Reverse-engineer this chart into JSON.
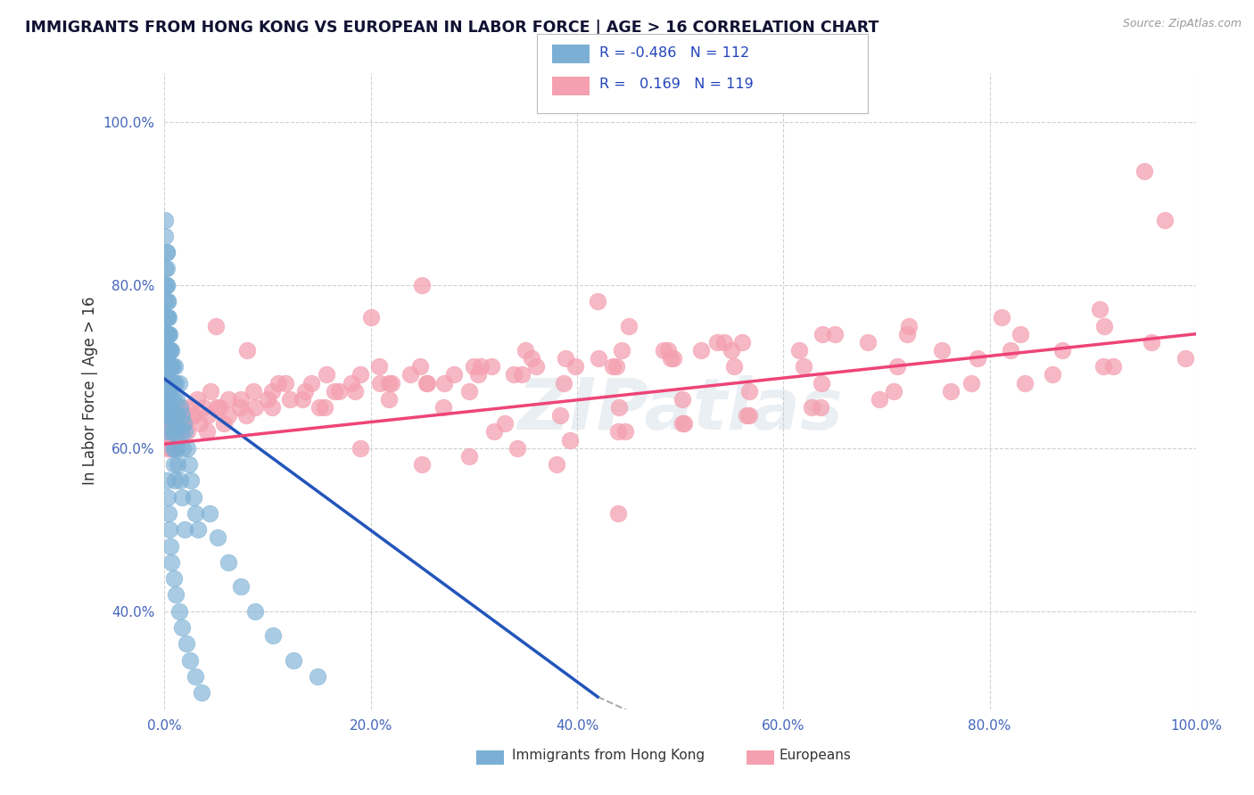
{
  "title": "IMMIGRANTS FROM HONG KONG VS EUROPEAN IN LABOR FORCE | AGE > 16 CORRELATION CHART",
  "source": "Source: ZipAtlas.com",
  "ylabel": "In Labor Force | Age > 16",
  "xlim": [
    0.0,
    1.0
  ],
  "ylim": [
    0.28,
    1.06
  ],
  "xticks": [
    0.0,
    0.2,
    0.4,
    0.6,
    0.8,
    1.0
  ],
  "xtick_labels": [
    "0.0%",
    "20.0%",
    "40.0%",
    "60.0%",
    "80.0%",
    "100.0%"
  ],
  "yticks": [
    0.4,
    0.6,
    0.8,
    1.0
  ],
  "ytick_labels": [
    "40.0%",
    "60.0%",
    "80.0%",
    "100.0%"
  ],
  "hk_R": -0.486,
  "hk_N": 112,
  "eu_R": 0.169,
  "eu_N": 119,
  "hk_color": "#7BAFD4",
  "eu_color": "#F4A0B0",
  "trend_hk_color": "#2255BB",
  "trend_eu_color": "#EE4477",
  "watermark_text": "ZIPatlas",
  "legend_label_hk": "Immigrants from Hong Kong",
  "legend_label_eu": "Europeans",
  "hk_trend_x0": 0.0,
  "hk_trend_y0": 0.685,
  "hk_trend_x1": 0.42,
  "hk_trend_y1": 0.295,
  "eu_trend_x0": 0.0,
  "eu_trend_y0": 0.605,
  "eu_trend_x1": 1.0,
  "eu_trend_y1": 0.74,
  "hk_x": [
    0.001,
    0.001,
    0.001,
    0.001,
    0.002,
    0.002,
    0.002,
    0.002,
    0.002,
    0.002,
    0.002,
    0.003,
    0.003,
    0.003,
    0.003,
    0.003,
    0.004,
    0.004,
    0.004,
    0.004,
    0.005,
    0.005,
    0.005,
    0.006,
    0.006,
    0.006,
    0.007,
    0.007,
    0.008,
    0.008,
    0.009,
    0.009,
    0.01,
    0.01,
    0.011,
    0.012,
    0.013,
    0.014,
    0.015,
    0.016,
    0.017,
    0.018,
    0.019,
    0.02,
    0.022,
    0.024,
    0.026,
    0.028,
    0.03,
    0.033,
    0.001,
    0.001,
    0.001,
    0.002,
    0.002,
    0.002,
    0.003,
    0.003,
    0.004,
    0.004,
    0.005,
    0.006,
    0.007,
    0.008,
    0.009,
    0.01,
    0.011,
    0.012,
    0.013,
    0.015,
    0.017,
    0.02,
    0.001,
    0.001,
    0.002,
    0.002,
    0.002,
    0.003,
    0.003,
    0.003,
    0.004,
    0.004,
    0.005,
    0.005,
    0.006,
    0.007,
    0.008,
    0.009,
    0.01,
    0.01,
    0.002,
    0.003,
    0.004,
    0.005,
    0.006,
    0.007,
    0.009,
    0.011,
    0.014,
    0.017,
    0.021,
    0.025,
    0.03,
    0.036,
    0.044,
    0.052,
    0.062,
    0.074,
    0.088,
    0.105,
    0.125,
    0.148
  ],
  "hk_y": [
    0.7,
    0.68,
    0.66,
    0.72,
    0.74,
    0.7,
    0.68,
    0.66,
    0.64,
    0.62,
    0.76,
    0.72,
    0.7,
    0.68,
    0.66,
    0.64,
    0.7,
    0.68,
    0.66,
    0.74,
    0.72,
    0.68,
    0.66,
    0.7,
    0.68,
    0.64,
    0.72,
    0.66,
    0.7,
    0.64,
    0.68,
    0.62,
    0.7,
    0.64,
    0.68,
    0.66,
    0.64,
    0.68,
    0.65,
    0.62,
    0.64,
    0.6,
    0.63,
    0.62,
    0.6,
    0.58,
    0.56,
    0.54,
    0.52,
    0.5,
    0.8,
    0.78,
    0.82,
    0.84,
    0.76,
    0.8,
    0.78,
    0.74,
    0.72,
    0.76,
    0.74,
    0.72,
    0.7,
    0.68,
    0.66,
    0.64,
    0.62,
    0.6,
    0.58,
    0.56,
    0.54,
    0.5,
    0.88,
    0.86,
    0.84,
    0.82,
    0.8,
    0.78,
    0.76,
    0.74,
    0.72,
    0.7,
    0.68,
    0.66,
    0.64,
    0.62,
    0.6,
    0.58,
    0.56,
    0.6,
    0.56,
    0.54,
    0.52,
    0.5,
    0.48,
    0.46,
    0.44,
    0.42,
    0.4,
    0.38,
    0.36,
    0.34,
    0.32,
    0.3,
    0.52,
    0.49,
    0.46,
    0.43,
    0.4,
    0.37,
    0.34,
    0.32
  ],
  "eu_x": [
    0.002,
    0.003,
    0.004,
    0.005,
    0.007,
    0.009,
    0.011,
    0.013,
    0.016,
    0.019,
    0.023,
    0.027,
    0.032,
    0.038,
    0.045,
    0.053,
    0.062,
    0.073,
    0.086,
    0.1,
    0.117,
    0.136,
    0.157,
    0.181,
    0.208,
    0.238,
    0.271,
    0.307,
    0.346,
    0.389,
    0.435,
    0.484,
    0.536,
    0.041,
    0.058,
    0.079,
    0.104,
    0.134,
    0.169,
    0.209,
    0.254,
    0.304,
    0.36,
    0.421,
    0.488,
    0.56,
    0.638,
    0.722,
    0.812,
    0.907,
    0.003,
    0.005,
    0.007,
    0.01,
    0.013,
    0.017,
    0.022,
    0.028,
    0.034,
    0.042,
    0.051,
    0.062,
    0.074,
    0.088,
    0.104,
    0.122,
    0.142,
    0.165,
    0.19,
    0.218,
    0.248,
    0.281,
    0.317,
    0.356,
    0.398,
    0.443,
    0.491,
    0.543,
    0.155,
    0.185,
    0.218,
    0.255,
    0.295,
    0.339,
    0.387,
    0.438,
    0.493,
    0.552,
    0.615,
    0.682,
    0.754,
    0.83,
    0.911,
    0.33,
    0.384,
    0.441,
    0.502,
    0.567,
    0.637,
    0.71,
    0.788,
    0.87,
    0.957,
    0.25,
    0.295,
    0.342,
    0.393,
    0.447,
    0.504,
    0.564,
    0.627,
    0.693,
    0.762,
    0.834,
    0.91,
    0.99,
    0.44,
    0.502,
    0.567,
    0.636,
    0.707,
    0.782,
    0.861
  ],
  "eu_y": [
    0.63,
    0.61,
    0.65,
    0.6,
    0.63,
    0.61,
    0.64,
    0.62,
    0.65,
    0.63,
    0.65,
    0.64,
    0.66,
    0.65,
    0.67,
    0.65,
    0.66,
    0.65,
    0.67,
    0.66,
    0.68,
    0.67,
    0.69,
    0.68,
    0.7,
    0.69,
    0.68,
    0.7,
    0.69,
    0.71,
    0.7,
    0.72,
    0.73,
    0.62,
    0.63,
    0.64,
    0.65,
    0.66,
    0.67,
    0.68,
    0.68,
    0.69,
    0.7,
    0.71,
    0.72,
    0.73,
    0.74,
    0.75,
    0.76,
    0.77,
    0.6,
    0.61,
    0.6,
    0.62,
    0.61,
    0.63,
    0.62,
    0.64,
    0.63,
    0.64,
    0.65,
    0.64,
    0.66,
    0.65,
    0.67,
    0.66,
    0.68,
    0.67,
    0.69,
    0.68,
    0.7,
    0.69,
    0.7,
    0.71,
    0.7,
    0.72,
    0.71,
    0.73,
    0.65,
    0.67,
    0.66,
    0.68,
    0.67,
    0.69,
    0.68,
    0.7,
    0.71,
    0.7,
    0.72,
    0.73,
    0.72,
    0.74,
    0.75,
    0.63,
    0.64,
    0.65,
    0.66,
    0.67,
    0.68,
    0.7,
    0.71,
    0.72,
    0.73,
    0.58,
    0.59,
    0.6,
    0.61,
    0.62,
    0.63,
    0.64,
    0.65,
    0.66,
    0.67,
    0.68,
    0.7,
    0.71,
    0.62,
    0.63,
    0.64,
    0.65,
    0.67,
    0.68,
    0.69
  ],
  "eu_outliers_x": [
    0.35,
    0.45,
    0.55,
    0.65,
    0.42,
    0.52,
    0.62,
    0.72,
    0.82,
    0.92,
    0.95,
    0.97,
    0.2,
    0.25,
    0.3,
    0.22,
    0.27,
    0.32,
    0.38,
    0.44,
    0.05,
    0.08,
    0.11,
    0.15,
    0.19
  ],
  "eu_outliers_y": [
    0.72,
    0.75,
    0.72,
    0.74,
    0.78,
    0.72,
    0.7,
    0.74,
    0.72,
    0.7,
    0.94,
    0.88,
    0.76,
    0.8,
    0.7,
    0.68,
    0.65,
    0.62,
    0.58,
    0.52,
    0.75,
    0.72,
    0.68,
    0.65,
    0.6
  ]
}
